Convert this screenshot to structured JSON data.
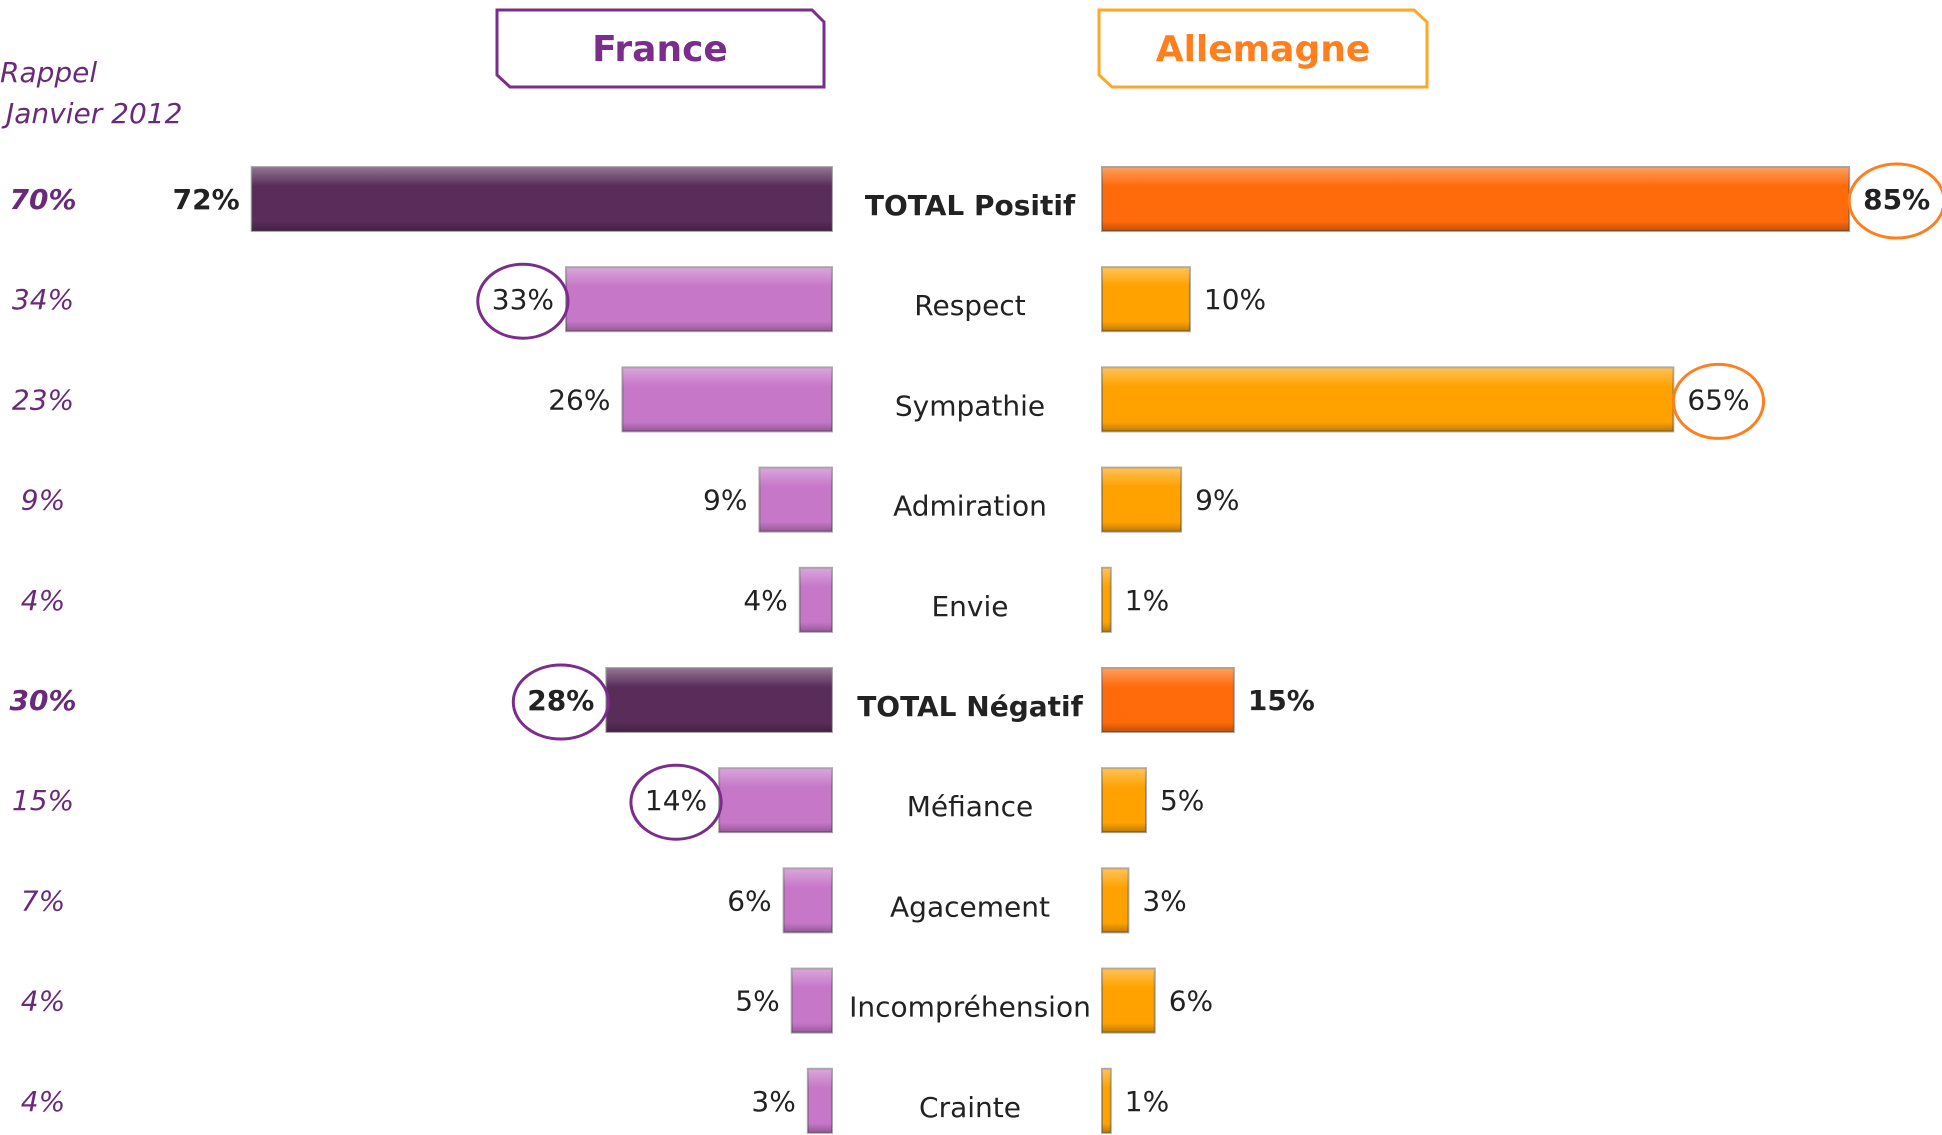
{
  "chart_data": {
    "type": "bar",
    "reference": {
      "label": [
        "Rappel",
        "Janvier 2012"
      ],
      "values": [
        70,
        34,
        23,
        9,
        4,
        30,
        15,
        7,
        4,
        4
      ],
      "value_labels": [
        "70%",
        "34%",
        "23%",
        "9%",
        "4%",
        "30%",
        "15%",
        "7%",
        "4%",
        "4%"
      ],
      "color": "#6a2a7a"
    },
    "categories": [
      "TOTAL Positif",
      "Respect",
      "Sympathie",
      "Admiration",
      "Envie",
      "TOTAL Négatif",
      "Méfiance",
      "Agacement",
      "Incompréhension",
      "Crainte"
    ],
    "emphasized": [
      0,
      5
    ],
    "series": [
      {
        "name": "France",
        "color": "#7b2d8b",
        "values": [
          72,
          33,
          26,
          9,
          4,
          28,
          14,
          6,
          5,
          3
        ],
        "value_labels": [
          "72%",
          "33%",
          "26%",
          "9%",
          "4%",
          "28%",
          "14%",
          "6%",
          "5%",
          "3%"
        ],
        "colors": [
          "#592c59",
          "#c677c8",
          "#c677c8",
          "#c677c8",
          "#c677c8",
          "#592c59",
          "#c677c8",
          "#c677c8",
          "#c677c8",
          "#c677c8"
        ],
        "highlighted": [
          1,
          5,
          6
        ]
      },
      {
        "name": "Allemagne",
        "color": "#ff7f1e",
        "values": [
          85,
          10,
          65,
          9,
          1,
          15,
          5,
          3,
          6,
          1
        ],
        "value_labels": [
          "85%",
          "10%",
          "65%",
          "9%",
          "1%",
          "15%",
          "5%",
          "3%",
          "6%",
          "1%"
        ],
        "colors": [
          "#ff6a0a",
          "#ffa200",
          "#ffa200",
          "#ffa200",
          "#ffa200",
          "#ff6a0a",
          "#ffa200",
          "#ffa200",
          "#ffa200",
          "#ffa200"
        ],
        "highlighted": [
          0,
          2
        ]
      }
    ]
  }
}
